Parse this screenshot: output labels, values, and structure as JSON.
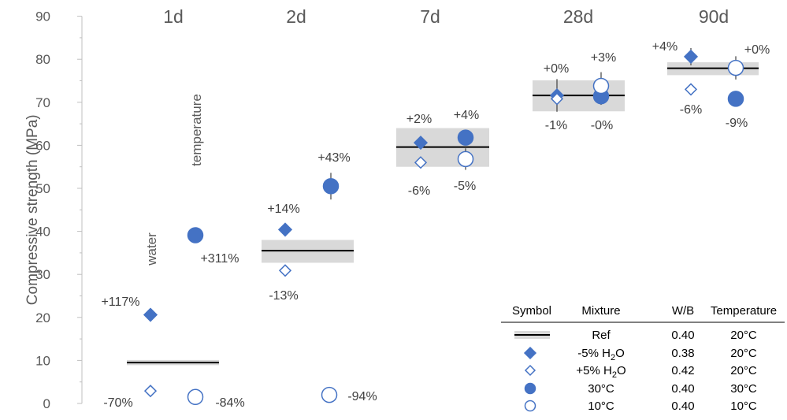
{
  "chart_data": {
    "type": "scatter",
    "ylabel": "Compressive strength (MPa)",
    "ylim": [
      0,
      90
    ],
    "yticks": [
      0,
      10,
      20,
      30,
      40,
      50,
      60,
      70,
      80,
      90
    ],
    "grid": false,
    "categories": [
      "1d",
      "2d",
      "7d",
      "28d",
      "90d"
    ],
    "reference": [
      {
        "age": "1d",
        "value": 9.5,
        "band": [
          8.9,
          10.1
        ]
      },
      {
        "age": "2d",
        "value": 35.5,
        "band": [
          32.7,
          38.0
        ]
      },
      {
        "age": "7d",
        "value": 59.6,
        "band": [
          55.0,
          64.0
        ]
      },
      {
        "age": "28d",
        "value": 71.6,
        "band": [
          67.9,
          75.1
        ]
      },
      {
        "age": "90d",
        "value": 77.9,
        "band": [
          76.3,
          79.3
        ]
      }
    ],
    "points": [
      {
        "age": "1d",
        "mix": "water_minus",
        "value": 20.6,
        "label": "+117%"
      },
      {
        "age": "1d",
        "mix": "water_plus",
        "value": 2.9,
        "label": "-70%"
      },
      {
        "age": "1d",
        "mix": "temp_hot",
        "value": 39.1,
        "label": "+311%"
      },
      {
        "age": "1d",
        "mix": "temp_cold",
        "value": 1.5,
        "label": "-84%"
      },
      {
        "age": "2d",
        "mix": "water_minus",
        "value": 40.4,
        "err": 1.0,
        "label": "+14%"
      },
      {
        "age": "2d",
        "mix": "water_plus",
        "value": 30.9,
        "label": "-13%"
      },
      {
        "age": "2d",
        "mix": "temp_hot",
        "value": 50.5,
        "err": 3.1,
        "label": "+43%"
      },
      {
        "age": "2d",
        "mix": "temp_cold",
        "value": 2.0,
        "label": "-94%"
      },
      {
        "age": "7d",
        "mix": "water_minus",
        "value": 60.6,
        "err": 1.0,
        "label": "+2%"
      },
      {
        "age": "7d",
        "mix": "water_plus",
        "value": 56.0,
        "label": "-6%"
      },
      {
        "age": "7d",
        "mix": "temp_hot",
        "value": 61.8,
        "err": 1.0,
        "label": "+4%"
      },
      {
        "age": "7d",
        "mix": "temp_cold",
        "value": 56.8,
        "err": 2.5,
        "label": "-5%"
      },
      {
        "age": "28d",
        "mix": "water_minus",
        "value": 71.6,
        "err": 3.8,
        "label": "+0%"
      },
      {
        "age": "28d",
        "mix": "water_plus",
        "value": 70.8,
        "err": 1.5,
        "label": "-1%"
      },
      {
        "age": "28d",
        "mix": "temp_hot",
        "value": 71.4,
        "err": 2.0,
        "label": "-0%"
      },
      {
        "age": "28d",
        "mix": "temp_cold",
        "value": 73.8,
        "err": 3.2,
        "label": "+3%"
      },
      {
        "age": "90d",
        "mix": "water_minus",
        "value": 80.6,
        "err": 2.0,
        "label": "+4%"
      },
      {
        "age": "90d",
        "mix": "water_plus",
        "value": 73.0,
        "label": "-6%"
      },
      {
        "age": "90d",
        "mix": "temp_hot",
        "value": 70.8,
        "label": "-9%"
      },
      {
        "age": "90d",
        "mix": "temp_cold",
        "value": 78.0,
        "err": 2.7,
        "label": "+0%"
      }
    ],
    "annotations": [
      "water",
      "temperature"
    ],
    "legend": {
      "placement": "bottom-right",
      "headers": [
        "Symbol",
        "Mixture",
        "W/B",
        "Temperature"
      ],
      "rows": [
        {
          "symbol": "ref",
          "mixture": "Ref",
          "wb": "0.40",
          "temperature": "20°C"
        },
        {
          "symbol": "water_minus",
          "mixture": "-5% H",
          "mixture_sub": "2",
          "mixture_tail": "O",
          "wb": "0.38",
          "temperature": "20°C"
        },
        {
          "symbol": "water_plus",
          "mixture": "+5% H",
          "mixture_sub": "2",
          "mixture_tail": "O",
          "wb": "0.42",
          "temperature": "20°C"
        },
        {
          "symbol": "temp_hot",
          "mixture": "30°C",
          "wb": "0.40",
          "temperature": "30°C"
        },
        {
          "symbol": "temp_cold",
          "mixture": "10°C",
          "wb": "0.40",
          "temperature": "10°C"
        }
      ]
    },
    "colors": {
      "marker": "#4472c4",
      "reference_band": "#d9d9d9",
      "reference_line": "#000000",
      "axis": "#bfbfbf",
      "text": "#595959"
    }
  }
}
